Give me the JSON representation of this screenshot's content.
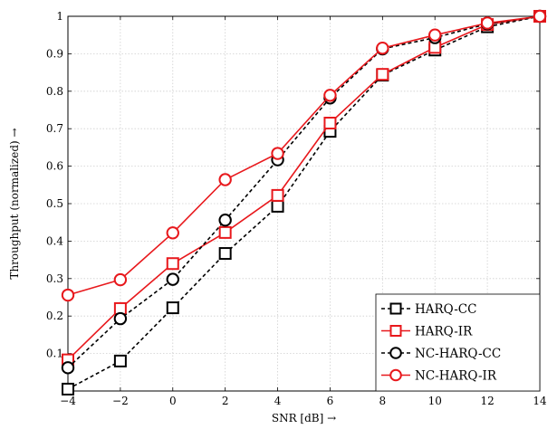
{
  "chart_data": {
    "type": "line",
    "title": "",
    "xlabel": "SNR [dB] →",
    "ylabel": "Throughput (normalized) →",
    "xlim": [
      -4,
      14
    ],
    "ylim": [
      0,
      1
    ],
    "grid": true,
    "legend_position": "bottom-right",
    "x": [
      -4,
      -2,
      0,
      2,
      4,
      6,
      8,
      10,
      12,
      14
    ],
    "x_tick_labels": [
      "−4",
      "−2",
      "0",
      "2",
      "4",
      "6",
      "8",
      "10",
      "12",
      "14"
    ],
    "y_ticks": [
      0.1,
      0.2,
      0.3,
      0.4,
      0.5,
      0.6,
      0.7,
      0.8,
      0.9,
      1
    ],
    "y_tick_labels": [
      "0.1",
      "0.2",
      "0.3",
      "0.4",
      "0.5",
      "0.6",
      "0.7",
      "0.8",
      "0.9",
      "1"
    ],
    "series": [
      {
        "name": "HARQ-CC",
        "color": "#000000",
        "dashed": true,
        "marker": "square",
        "values": [
          0.005,
          0.08,
          0.222,
          0.367,
          0.493,
          0.693,
          0.843,
          0.91,
          0.972,
          1.0
        ]
      },
      {
        "name": "HARQ-IR",
        "color": "#e8181c",
        "dashed": false,
        "marker": "square",
        "values": [
          0.083,
          0.22,
          0.34,
          0.423,
          0.522,
          0.715,
          0.845,
          0.917,
          0.978,
          1.0
        ]
      },
      {
        "name": "NC-HARQ-CC",
        "color": "#000000",
        "dashed": true,
        "marker": "circle",
        "values": [
          0.062,
          0.193,
          0.298,
          0.456,
          0.617,
          0.782,
          0.913,
          0.943,
          0.98,
          1.0
        ]
      },
      {
        "name": "NC-HARQ-IR",
        "color": "#e8181c",
        "dashed": false,
        "marker": "circle",
        "values": [
          0.256,
          0.297,
          0.422,
          0.564,
          0.634,
          0.789,
          0.915,
          0.95,
          0.982,
          1.0
        ]
      }
    ]
  }
}
